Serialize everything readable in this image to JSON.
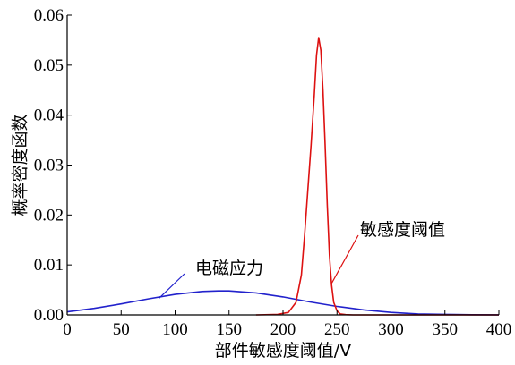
{
  "chart_data": {
    "type": "line",
    "title": "",
    "xlabel": "部件敏感度阈值/V",
    "ylabel": "概率密度函数",
    "xlim": [
      0,
      400
    ],
    "ylim": [
      0,
      0.06
    ],
    "grid": false,
    "x_ticks": [
      "0",
      "50",
      "100",
      "150",
      "200",
      "250",
      "300",
      "350",
      "400"
    ],
    "y_ticks": [
      "0.00",
      "0.01",
      "0.02",
      "0.03",
      "0.04",
      "0.05",
      "0.06"
    ],
    "colors": {
      "series_1": "#2222cc",
      "series_2": "#dd1111"
    },
    "series": [
      {
        "name": "电磁应力",
        "x": [
          0,
          25,
          50,
          75,
          100,
          125,
          140,
          150,
          175,
          200,
          225,
          250,
          275,
          300,
          325,
          350,
          375,
          400
        ],
        "y": [
          0.0006,
          0.0013,
          0.0022,
          0.0032,
          0.0041,
          0.0047,
          0.0048,
          0.0048,
          0.0044,
          0.0036,
          0.0026,
          0.0017,
          0.001,
          0.0005,
          0.0002,
          0.0001,
          3e-05,
          1e-05
        ]
      },
      {
        "name": "敏感度阈值",
        "x": [
          175,
          195,
          205,
          212,
          217,
          220,
          223,
          226,
          229,
          231,
          233,
          235,
          237,
          239,
          241,
          243,
          245,
          247,
          250,
          253,
          258,
          265,
          300,
          400
        ],
        "y": [
          0.0,
          0.0001,
          0.0005,
          0.0025,
          0.008,
          0.016,
          0.025,
          0.034,
          0.044,
          0.052,
          0.0555,
          0.053,
          0.045,
          0.034,
          0.022,
          0.012,
          0.006,
          0.0025,
          0.0008,
          0.0002,
          5e-05,
          0.0,
          0.0,
          0.0
        ]
      }
    ],
    "annotations": [
      {
        "text": "电磁应力",
        "series": 0,
        "x": 85,
        "y": 0.0033
      },
      {
        "text": "敏感度阈值",
        "series": 1,
        "x": 245,
        "y": 0.0063
      }
    ]
  }
}
